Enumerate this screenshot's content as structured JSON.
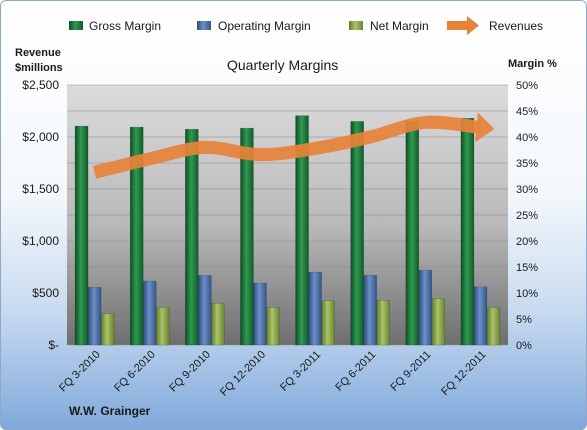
{
  "company": "W.W. Grainger",
  "chart_data": {
    "type": "bar",
    "title": "Quarterly Margins",
    "left_axis_label": [
      "Revenue",
      "$millions"
    ],
    "right_axis_label": "Margin %",
    "categories": [
      "FQ 3-2010",
      "FQ 6-2010",
      "FQ 9-2010",
      "FQ 12-2010",
      "FQ 3-2011",
      "FQ 6-2011",
      "FQ 9-2011",
      "FQ 12-2011"
    ],
    "left_ticks": [
      "$-",
      "$500",
      "$1,000",
      "$1,500",
      "$2,000",
      "$2,500"
    ],
    "right_ticks": [
      "0%",
      "5%",
      "10%",
      "15%",
      "20%",
      "25%",
      "30%",
      "35%",
      "40%",
      "45%",
      "50%"
    ],
    "left_ylim": [
      0,
      2500
    ],
    "right_ylim": [
      0,
      50
    ],
    "legend_position": "top",
    "series": [
      {
        "name": "Gross Margin",
        "axis": "right",
        "kind": "bar",
        "color": "#1f7a3c",
        "values": [
          42.1,
          41.9,
          41.5,
          41.7,
          44.1,
          43.0,
          43.1,
          43.6
        ]
      },
      {
        "name": "Operating Margin",
        "axis": "right",
        "kind": "bar",
        "color": "#4a6fa8",
        "values": [
          11.1,
          12.3,
          13.4,
          11.9,
          14.0,
          13.4,
          14.4,
          11.2
        ]
      },
      {
        "name": "Net Margin",
        "axis": "right",
        "kind": "bar",
        "color": "#8aa64a",
        "values": [
          6.0,
          7.2,
          8.0,
          7.2,
          8.5,
          8.6,
          8.9,
          7.2
        ]
      },
      {
        "name": "Revenues",
        "axis": "left",
        "kind": "line",
        "color": "#e8823a",
        "values": [
          1660,
          1790,
          1900,
          1830,
          1890,
          2000,
          2140,
          2090
        ]
      }
    ]
  }
}
